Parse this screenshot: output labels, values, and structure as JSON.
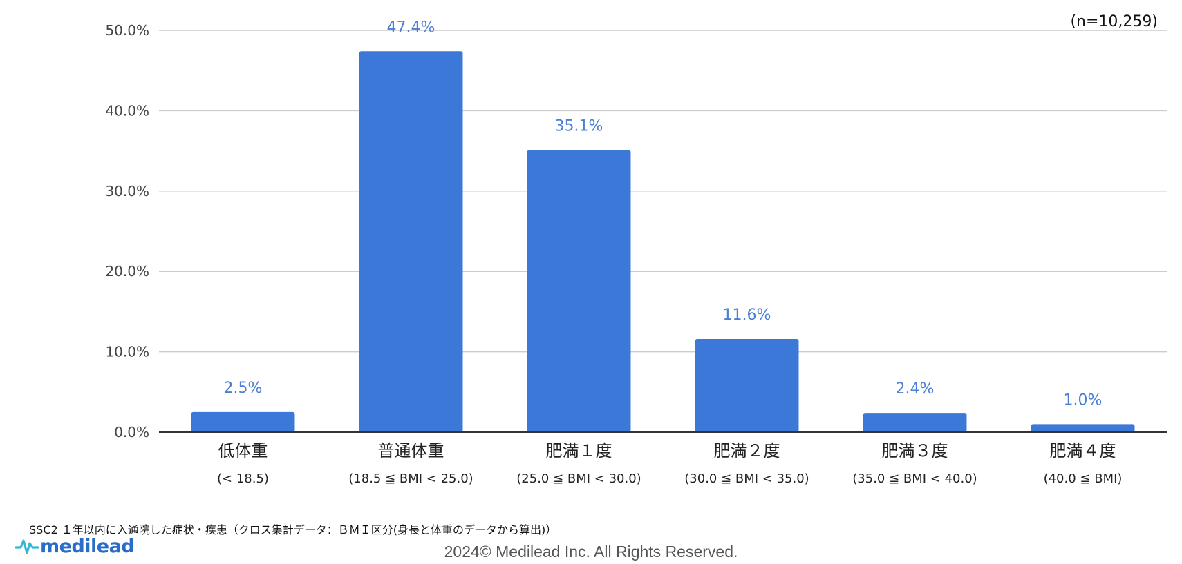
{
  "chart_data": {
    "type": "bar",
    "categories": [
      {
        "label": "低体重",
        "sub": "(< 18.5)"
      },
      {
        "label": "普通体重",
        "sub": "(18.5 ≦ BMI < 25.0)"
      },
      {
        "label": "肥満１度",
        "sub": "(25.0 ≦ BMI < 30.0)"
      },
      {
        "label": "肥満２度",
        "sub": "(30.0 ≦ BMI < 35.0)"
      },
      {
        "label": "肥満３度",
        "sub": "(35.0 ≦ BMI < 40.0)"
      },
      {
        "label": "肥満４度",
        "sub": "(40.0 ≦ BMI)"
      }
    ],
    "values": [
      2.5,
      47.4,
      35.1,
      11.6,
      2.4,
      1.0
    ],
    "data_labels": [
      "2.5%",
      "47.4%",
      "35.1%",
      "11.6%",
      "2.4%",
      "1.0%"
    ],
    "y_ticks": [
      "0.0%",
      "10.0%",
      "20.0%",
      "30.0%",
      "40.0%",
      "50.0%"
    ],
    "ylim": [
      0,
      50
    ],
    "sample_size": "(n=10,259)",
    "grid": true,
    "bar_color": "#3c78d8",
    "label_color": "#4a7fd6"
  },
  "footer": {
    "source_note": "SSC2 １年以内に入通院した症状・疾患（クロス集計データ：ＢＭＩ区分(身長と体重のデータから算出)）",
    "logo_text": "medilead",
    "copyright": "2024© Medilead Inc. All Rights Reserved."
  }
}
